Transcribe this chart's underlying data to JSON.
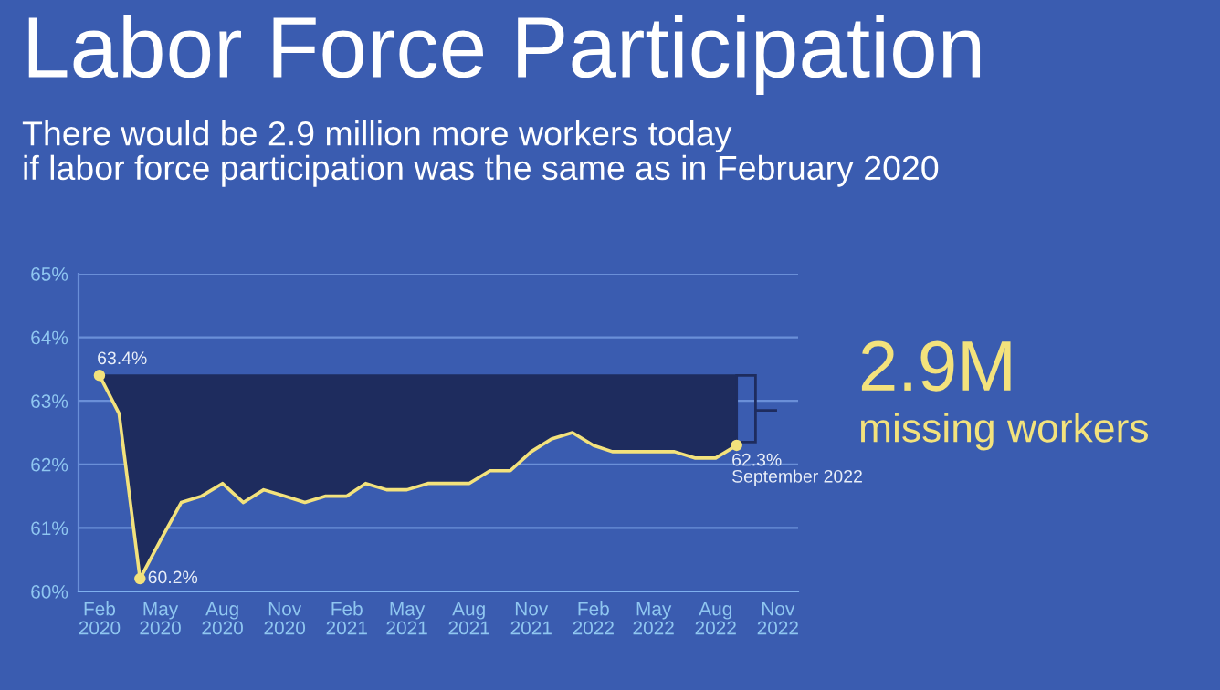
{
  "chart_data": {
    "type": "line",
    "title": "Labor Force Participation",
    "subtitle": "There would be 2.9 million more workers today\nif labor force participation was the same as in February 2020",
    "x": [
      "2020-02",
      "2020-03",
      "2020-04",
      "2020-05",
      "2020-06",
      "2020-07",
      "2020-08",
      "2020-09",
      "2020-10",
      "2020-11",
      "2020-12",
      "2021-01",
      "2021-02",
      "2021-03",
      "2021-04",
      "2021-05",
      "2021-06",
      "2021-07",
      "2021-08",
      "2021-09",
      "2021-10",
      "2021-11",
      "2021-12",
      "2022-01",
      "2022-02",
      "2022-03",
      "2022-04",
      "2022-05",
      "2022-06",
      "2022-07",
      "2022-08",
      "2022-09"
    ],
    "series": [
      {
        "color": "#f3e27c",
        "values": [
          63.4,
          62.8,
          60.2,
          60.8,
          61.4,
          61.5,
          61.7,
          61.4,
          61.6,
          61.5,
          61.4,
          61.5,
          61.5,
          61.7,
          61.6,
          61.6,
          61.7,
          61.7,
          61.7,
          61.9,
          61.9,
          62.2,
          62.4,
          62.5,
          62.3,
          62.2,
          62.2,
          62.2,
          62.2,
          62.1,
          62.1,
          62.3
        ]
      }
    ],
    "ref_lines": [
      {
        "axis": "y",
        "value": 63.4,
        "color": "#1e2c5e"
      }
    ],
    "annotations": [
      {
        "text": "63.4%",
        "x": "2020-02",
        "y": 63.4
      },
      {
        "text": "60.2%",
        "x": "2020-04",
        "y": 60.2
      },
      {
        "text": "62.3%\nSeptember 2022",
        "x": "2022-09",
        "y": 62.3
      },
      "2.9M",
      "missing workers"
    ],
    "xlim": [
      "2020-01",
      "2022-12"
    ],
    "xticks": [
      {
        "value": "2020-02",
        "label": "Feb\n2020"
      },
      {
        "value": "2020-05",
        "label": "May\n2020"
      },
      {
        "value": "2020-08",
        "label": "Aug\n2020"
      },
      {
        "value": "2020-11",
        "label": "Nov\n2020"
      },
      {
        "value": "2021-02",
        "label": "Feb\n2021"
      },
      {
        "value": "2021-05",
        "label": "May\n2021"
      },
      {
        "value": "2021-08",
        "label": "Aug\n2021"
      },
      {
        "value": "2021-11",
        "label": "Nov\n2021"
      },
      {
        "value": "2022-02",
        "label": "Feb\n2022"
      },
      {
        "value": "2022-05",
        "label": "May\n2022"
      },
      {
        "value": "2022-08",
        "label": "Aug\n2022"
      },
      {
        "value": "2022-11",
        "label": "Nov\n2022"
      }
    ],
    "ylim": [
      60,
      65
    ],
    "yticks": [
      {
        "value": 60,
        "label": "60%"
      },
      {
        "value": 61,
        "label": "61%"
      },
      {
        "value": 62,
        "label": "62%"
      },
      {
        "value": 63,
        "label": "63%"
      },
      {
        "value": 64,
        "label": "64%"
      },
      {
        "value": 65,
        "label": "65%"
      }
    ],
    "grid": "y",
    "legend": false,
    "marker": "none",
    "line_style": "solid"
  }
}
